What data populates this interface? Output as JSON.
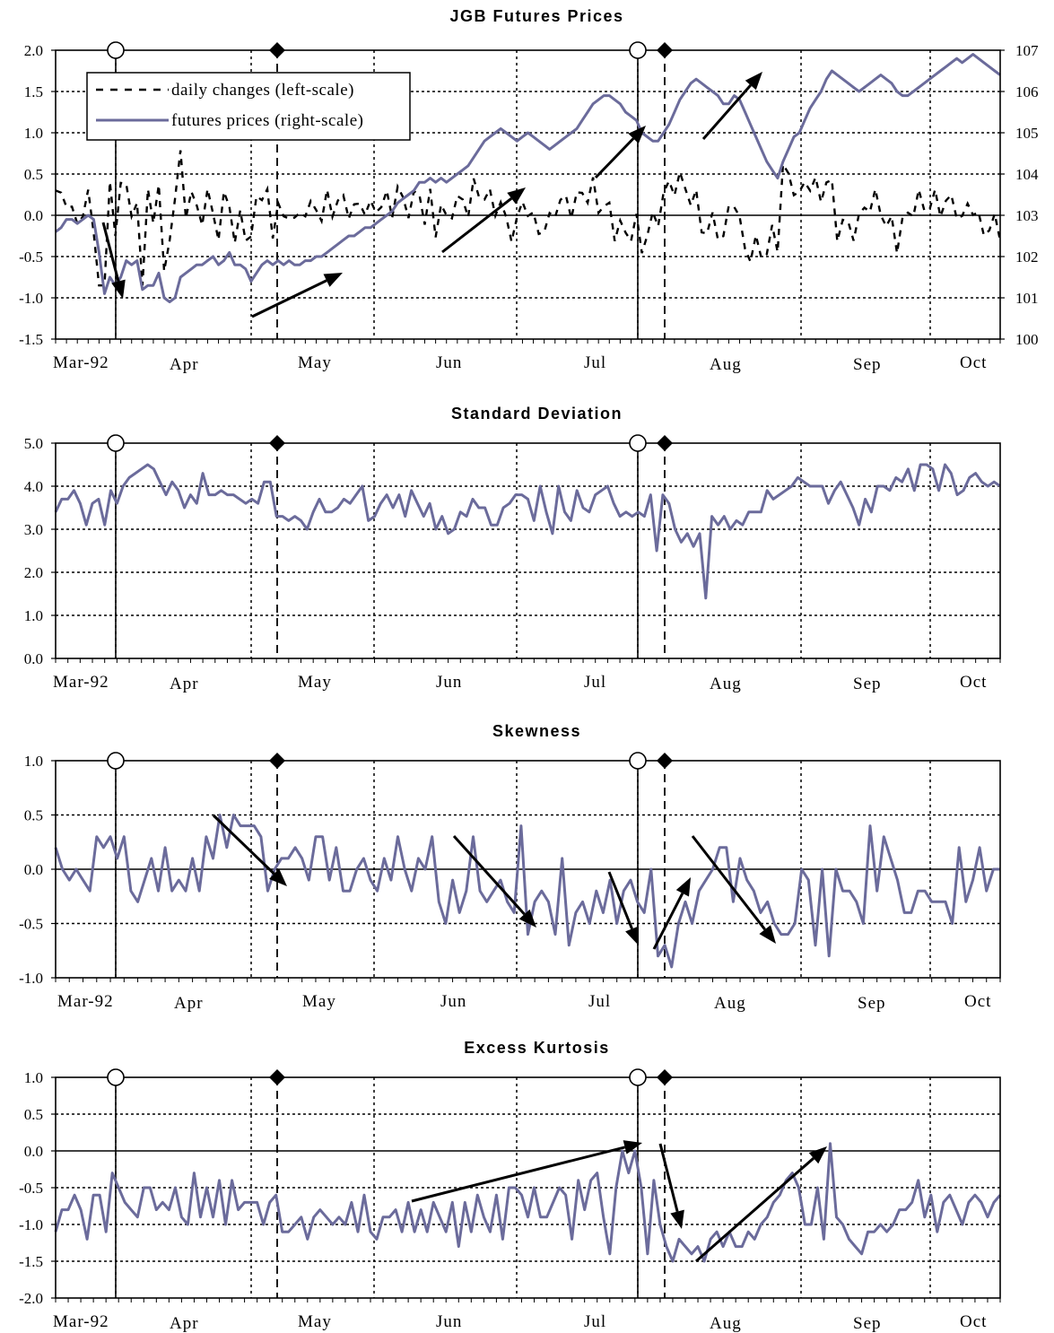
{
  "colors": {
    "series": "#6b6b9b",
    "daily": "#000000",
    "grid": "#000000"
  },
  "month_labels": [
    "Mar-92",
    "Apr",
    "May",
    "Jun",
    "Jul",
    "Aug",
    "Sep",
    "Oct"
  ],
  "chart_data": [
    {
      "type": "line",
      "title": "JGB Futures Prices",
      "ylim": [
        -1.5,
        2.0
      ],
      "yticks": [
        "-1.5",
        "-1.0",
        "-0.5",
        "0.0",
        "0.5",
        "1.0",
        "1.5",
        "2.0"
      ],
      "y2lim": [
        100,
        107
      ],
      "y2ticks": [
        "100",
        "101",
        "102",
        "103",
        "104",
        "105",
        "106",
        "107"
      ],
      "grid": true,
      "legend": "top-left",
      "legend_entries": [
        "daily changes (left-scale)",
        "futures prices (right-scale)"
      ],
      "series": [
        {
          "name": "futures prices (right-scale)",
          "axis": "right",
          "values": [
            102.6,
            102.7,
            102.9,
            102.9,
            102.8,
            102.9,
            103.0,
            102.9,
            102.1,
            101.1,
            101.5,
            101.3,
            101.5,
            101.9,
            101.8,
            101.9,
            101.2,
            101.3,
            101.3,
            101.6,
            101.0,
            100.9,
            101.0,
            101.5,
            101.6,
            101.7,
            101.8,
            101.8,
            101.9,
            102.0,
            101.8,
            101.9,
            102.1,
            101.8,
            101.8,
            101.7,
            101.4,
            101.6,
            101.8,
            101.9,
            101.8,
            101.9,
            101.8,
            101.9,
            101.8,
            101.8,
            101.9,
            101.9,
            102.0,
            102.0,
            102.1,
            102.2,
            102.3,
            102.4,
            102.5,
            102.5,
            102.6,
            102.7,
            102.7,
            102.8,
            102.9,
            103.0,
            103.1,
            103.3,
            103.4,
            103.5,
            103.6,
            103.8,
            103.8,
            103.9,
            103.8,
            103.9,
            103.8,
            103.9,
            104.0,
            104.1,
            104.2,
            104.4,
            104.6,
            104.8,
            104.9,
            105.0,
            105.1,
            105.0,
            104.9,
            104.8,
            104.9,
            105.0,
            104.9,
            104.8,
            104.7,
            104.6,
            104.7,
            104.8,
            104.9,
            105.0,
            105.1,
            105.3,
            105.5,
            105.7,
            105.8,
            105.9,
            105.9,
            105.8,
            105.7,
            105.5,
            105.4,
            105.3,
            105.0,
            104.9,
            104.8,
            104.8,
            105.0,
            105.2,
            105.5,
            105.8,
            106.0,
            106.2,
            106.3,
            106.2,
            106.1,
            106.0,
            105.9,
            105.7,
            105.7,
            105.9,
            105.8,
            105.5,
            105.2,
            104.9,
            104.6,
            104.3,
            104.1,
            103.9,
            104.3,
            104.6,
            104.9,
            105.0,
            105.3,
            105.6,
            105.8,
            106.0,
            106.3,
            106.5,
            106.4,
            106.3,
            106.2,
            106.1,
            106.0,
            106.1,
            106.2,
            106.3,
            106.4,
            106.3,
            106.2,
            106.0,
            105.9,
            105.9,
            106.0,
            106.1,
            106.2,
            106.3,
            106.4,
            106.5,
            106.6,
            106.7,
            106.8,
            106.7,
            106.8,
            106.9,
            106.8,
            106.7,
            106.6,
            106.5,
            106.4
          ]
        }
      ]
    },
    {
      "type": "line",
      "title": "Standard Deviation",
      "ylim": [
        0.0,
        5.0
      ],
      "yticks": [
        "0.0",
        "1.0",
        "2.0",
        "3.0",
        "4.0",
        "5.0"
      ],
      "grid": true,
      "series": [
        {
          "values": [
            3.4,
            3.7,
            3.7,
            3.9,
            3.6,
            3.1,
            3.6,
            3.7,
            3.1,
            3.9,
            3.6,
            4.0,
            4.2,
            4.3,
            4.4,
            4.5,
            4.4,
            4.1,
            3.8,
            4.1,
            3.9,
            3.5,
            3.8,
            3.6,
            4.3,
            3.8,
            3.8,
            3.9,
            3.8,
            3.8,
            3.7,
            3.6,
            3.7,
            3.6,
            4.1,
            4.1,
            3.3,
            3.3,
            3.2,
            3.3,
            3.2,
            3.0,
            3.4,
            3.7,
            3.4,
            3.4,
            3.5,
            3.7,
            3.6,
            3.8,
            4.0,
            3.2,
            3.3,
            3.6,
            3.8,
            3.5,
            3.8,
            3.3,
            3.9,
            3.6,
            3.3,
            3.6,
            3.0,
            3.3,
            2.9,
            3.0,
            3.4,
            3.3,
            3.7,
            3.5,
            3.5,
            3.1,
            3.1,
            3.5,
            3.6,
            3.8,
            3.8,
            3.7,
            3.2,
            4.0,
            3.4,
            2.9,
            4.0,
            3.4,
            3.2,
            3.9,
            3.5,
            3.4,
            3.8,
            3.9,
            4.0,
            3.6,
            3.3,
            3.4,
            3.3,
            3.4,
            3.3,
            3.8,
            2.5,
            3.8,
            3.6,
            3.0,
            2.7,
            2.9,
            2.6,
            2.9,
            1.4,
            3.3,
            3.1,
            3.3,
            3.0,
            3.2,
            3.1,
            3.4,
            3.4,
            3.4,
            3.9,
            3.7,
            3.8,
            3.9,
            4.0,
            4.2,
            4.1,
            4.0,
            4.0,
            4.0,
            3.6,
            3.9,
            4.1,
            3.8,
            3.5,
            3.1,
            3.7,
            3.4,
            4.0,
            4.0,
            3.9,
            4.2,
            4.1,
            4.4,
            3.9,
            4.5,
            4.5,
            4.4,
            3.9,
            4.5,
            4.3,
            3.8,
            3.9,
            4.2,
            4.3,
            4.1,
            4.0,
            4.1,
            4.0
          ]
        }
      ]
    },
    {
      "type": "line",
      "title": "Skewness",
      "ylim": [
        -1.0,
        1.0
      ],
      "yticks": [
        "-1.0",
        "-0.5",
        "0.0",
        "0.5",
        "1.0"
      ],
      "grid": true,
      "series": [
        {
          "values": [
            0.2,
            0.0,
            -0.1,
            0.0,
            -0.1,
            -0.2,
            0.3,
            0.2,
            0.3,
            0.1,
            0.3,
            -0.2,
            -0.3,
            -0.1,
            0.1,
            -0.2,
            0.2,
            -0.2,
            -0.1,
            -0.2,
            0.1,
            -0.2,
            0.3,
            0.1,
            0.5,
            0.2,
            0.5,
            0.4,
            0.4,
            0.4,
            0.3,
            -0.2,
            0.0,
            0.1,
            0.1,
            0.2,
            0.1,
            -0.1,
            0.3,
            0.3,
            -0.1,
            0.2,
            -0.2,
            -0.2,
            0.0,
            0.1,
            -0.1,
            -0.2,
            0.1,
            -0.1,
            0.3,
            0.0,
            -0.2,
            0.1,
            0.0,
            0.3,
            -0.3,
            -0.5,
            -0.1,
            -0.4,
            -0.2,
            0.3,
            -0.2,
            -0.3,
            -0.2,
            -0.1,
            -0.3,
            -0.4,
            0.4,
            -0.6,
            -0.3,
            -0.2,
            -0.3,
            -0.6,
            0.1,
            -0.7,
            -0.4,
            -0.3,
            -0.5,
            -0.2,
            -0.4,
            -0.1,
            -0.5,
            -0.2,
            -0.1,
            -0.3,
            -0.4,
            0.0,
            -0.8,
            -0.7,
            -0.9,
            -0.5,
            -0.3,
            -0.5,
            -0.2,
            -0.1,
            0.0,
            0.2,
            0.2,
            -0.3,
            0.1,
            -0.1,
            -0.2,
            -0.4,
            -0.3,
            -0.5,
            -0.6,
            -0.6,
            -0.5,
            0.0,
            -0.1,
            -0.7,
            0.0,
            -0.8,
            0.0,
            -0.2,
            -0.2,
            -0.3,
            -0.5,
            0.4,
            -0.2,
            0.3,
            0.1,
            -0.1,
            -0.4,
            -0.4,
            -0.2,
            -0.2,
            -0.3,
            -0.3,
            -0.3,
            -0.5,
            0.2,
            -0.3,
            -0.1,
            0.2,
            -0.2,
            0.0,
            0.0
          ]
        }
      ]
    },
    {
      "type": "line",
      "title": "Excess Kurtosis",
      "ylim": [
        -2.0,
        1.0
      ],
      "yticks": [
        "-2.0",
        "-1.5",
        "-1.0",
        "-0.5",
        "0.0",
        "0.5",
        "1.0"
      ],
      "grid": true,
      "series": [
        {
          "values": [
            -1.1,
            -0.8,
            -0.8,
            -0.6,
            -0.8,
            -1.2,
            -0.6,
            -0.6,
            -1.1,
            -0.3,
            -0.5,
            -0.7,
            -0.8,
            -0.9,
            -0.5,
            -0.5,
            -0.8,
            -0.7,
            -0.8,
            -0.5,
            -0.9,
            -1.0,
            -0.3,
            -0.9,
            -0.5,
            -0.9,
            -0.4,
            -1.0,
            -0.4,
            -0.8,
            -0.7,
            -0.7,
            -0.7,
            -1.0,
            -0.7,
            -0.6,
            -1.1,
            -1.1,
            -1.0,
            -0.9,
            -1.2,
            -0.9,
            -0.8,
            -0.9,
            -1.0,
            -0.9,
            -1.0,
            -0.7,
            -1.1,
            -0.6,
            -1.1,
            -1.2,
            -0.9,
            -0.9,
            -0.8,
            -1.1,
            -0.7,
            -1.1,
            -0.8,
            -1.1,
            -0.7,
            -0.9,
            -1.1,
            -0.7,
            -1.3,
            -0.7,
            -1.1,
            -0.6,
            -0.9,
            -1.1,
            -0.6,
            -1.2,
            -0.5,
            -0.5,
            -0.6,
            -0.9,
            -0.5,
            -0.9,
            -0.9,
            -0.7,
            -0.5,
            -0.6,
            -1.2,
            -0.4,
            -0.8,
            -0.4,
            -0.3,
            -0.9,
            -1.4,
            -0.5,
            0.0,
            -0.3,
            0.0,
            -0.5,
            -1.4,
            -0.4,
            -1.0,
            -1.3,
            -1.5,
            -1.2,
            -1.3,
            -1.4,
            -1.3,
            -1.5,
            -1.2,
            -1.1,
            -1.3,
            -1.1,
            -1.3,
            -1.3,
            -1.1,
            -1.2,
            -1.0,
            -0.9,
            -0.7,
            -0.6,
            -0.4,
            -0.3,
            -0.5,
            -1.0,
            -1.0,
            -0.5,
            -1.2,
            0.1,
            -0.9,
            -1.0,
            -1.2,
            -1.3,
            -1.4,
            -1.1,
            -1.1,
            -1.0,
            -1.1,
            -1.0,
            -0.8,
            -0.8,
            -0.7,
            -0.4,
            -0.9,
            -0.6,
            -1.1,
            -0.7,
            -0.6,
            -0.8,
            -1.0,
            -0.7,
            -0.6,
            -0.7,
            -0.9,
            -0.7,
            -0.6
          ]
        }
      ]
    }
  ]
}
